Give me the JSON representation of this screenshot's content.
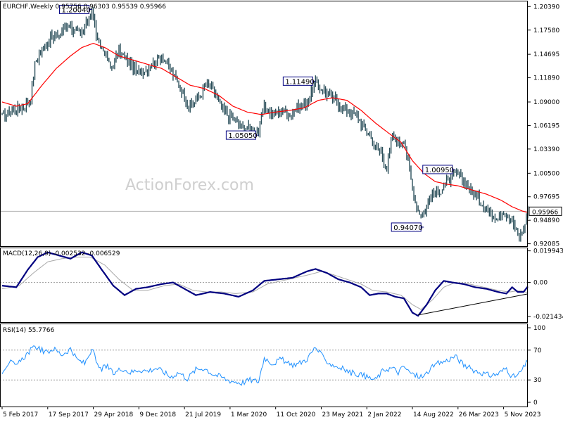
{
  "chart_data": {
    "type": "candlestick",
    "colors": {
      "price": "#2b4f5a",
      "ma": "#ff0000",
      "macd": "#000080",
      "signal": "#a9a9a9",
      "rsi": "#1e90ff",
      "dotted": "#999999",
      "trendline": "#000000"
    },
    "price_panel": {
      "title": "EURCHF,Weekly  0.95756 0.96303 0.95539 0.95966",
      "ylim": [
        0.918,
        1.21
      ],
      "y_ticks": [
        "1.20390",
        "1.17580",
        "1.14695",
        "1.11890",
        "1.09000",
        "1.06195",
        "1.03390",
        "1.00500",
        "0.97695",
        "0.94890",
        "0.92085"
      ],
      "current_price": "0.95966",
      "current_value": 0.95966,
      "watermark": "ActionForex.com",
      "annotations": [
        {
          "label": "1.20040",
          "value": 1.2004,
          "index": 63
        },
        {
          "label": "1.05050",
          "value": 1.0505,
          "index": 180
        },
        {
          "label": "1.11490",
          "value": 1.1149,
          "index": 220
        },
        {
          "label": "1.00950",
          "value": 1.0095,
          "index": 318
        },
        {
          "label": "0.94070",
          "value": 0.9407,
          "index": 296
        }
      ],
      "anchors": [
        [
          0,
          1.073
        ],
        [
          8,
          1.08
        ],
        [
          15,
          1.083
        ],
        [
          20,
          1.095
        ],
        [
          23,
          1.135
        ],
        [
          27,
          1.15
        ],
        [
          33,
          1.165
        ],
        [
          40,
          1.17
        ],
        [
          47,
          1.185
        ],
        [
          50,
          1.175
        ],
        [
          56,
          1.17
        ],
        [
          63,
          1.2
        ],
        [
          67,
          1.16
        ],
        [
          72,
          1.15
        ],
        [
          76,
          1.13
        ],
        [
          82,
          1.15
        ],
        [
          88,
          1.14
        ],
        [
          95,
          1.125
        ],
        [
          102,
          1.13
        ],
        [
          108,
          1.14
        ],
        [
          112,
          1.145
        ],
        [
          118,
          1.13
        ],
        [
          122,
          1.115
        ],
        [
          126,
          1.105
        ],
        [
          131,
          1.085
        ],
        [
          138,
          1.095
        ],
        [
          143,
          1.11
        ],
        [
          148,
          1.105
        ],
        [
          153,
          1.085
        ],
        [
          158,
          1.075
        ],
        [
          163,
          1.07
        ],
        [
          168,
          1.06
        ],
        [
          174,
          1.058
        ],
        [
          180,
          1.055
        ],
        [
          184,
          1.085
        ],
        [
          190,
          1.075
        ],
        [
          196,
          1.08
        ],
        [
          202,
          1.075
        ],
        [
          208,
          1.085
        ],
        [
          214,
          1.09
        ],
        [
          220,
          1.113
        ],
        [
          228,
          1.1
        ],
        [
          235,
          1.09
        ],
        [
          242,
          1.08
        ],
        [
          248,
          1.075
        ],
        [
          254,
          1.06
        ],
        [
          258,
          1.05
        ],
        [
          262,
          1.035
        ],
        [
          266,
          1.03
        ],
        [
          270,
          1.01
        ],
        [
          274,
          1.05
        ],
        [
          278,
          1.04
        ],
        [
          282,
          1.045
        ],
        [
          285,
          1.02
        ],
        [
          288,
          0.985
        ],
        [
          291,
          0.965
        ],
        [
          294,
          0.955
        ],
        [
          297,
          0.962
        ],
        [
          300,
          0.975
        ],
        [
          304,
          0.98
        ],
        [
          308,
          0.985
        ],
        [
          312,
          0.995
        ],
        [
          316,
          1.0
        ],
        [
          319,
          1.005
        ],
        [
          324,
          0.995
        ],
        [
          329,
          0.985
        ],
        [
          334,
          0.975
        ],
        [
          339,
          0.965
        ],
        [
          344,
          0.955
        ],
        [
          348,
          0.955
        ],
        [
          352,
          0.96
        ],
        [
          356,
          0.95
        ],
        [
          360,
          0.94
        ],
        [
          363,
          0.93
        ],
        [
          366,
          0.938
        ],
        [
          369,
          0.96
        ]
      ],
      "ma_anchors": [
        [
          0,
          1.09
        ],
        [
          10,
          1.085
        ],
        [
          18,
          1.088
        ],
        [
          28,
          1.11
        ],
        [
          38,
          1.13
        ],
        [
          48,
          1.145
        ],
        [
          56,
          1.155
        ],
        [
          64,
          1.16
        ],
        [
          72,
          1.155
        ],
        [
          82,
          1.145
        ],
        [
          92,
          1.14
        ],
        [
          102,
          1.135
        ],
        [
          112,
          1.13
        ],
        [
          122,
          1.12
        ],
        [
          132,
          1.11
        ],
        [
          142,
          1.106
        ],
        [
          152,
          1.098
        ],
        [
          162,
          1.085
        ],
        [
          172,
          1.078
        ],
        [
          182,
          1.075
        ],
        [
          192,
          1.078
        ],
        [
          202,
          1.08
        ],
        [
          212,
          1.083
        ],
        [
          222,
          1.092
        ],
        [
          232,
          1.095
        ],
        [
          242,
          1.092
        ],
        [
          252,
          1.08
        ],
        [
          262,
          1.065
        ],
        [
          272,
          1.052
        ],
        [
          280,
          1.042
        ],
        [
          288,
          1.02
        ],
        [
          296,
          1.005
        ],
        [
          304,
          0.995
        ],
        [
          312,
          0.992
        ],
        [
          320,
          0.99
        ],
        [
          330,
          0.985
        ],
        [
          340,
          0.98
        ],
        [
          350,
          0.973
        ],
        [
          358,
          0.965
        ],
        [
          365,
          0.96
        ],
        [
          369,
          0.958
        ]
      ]
    },
    "macd_panel": {
      "title": "MACD(12,26,9) -0.002532 -0.006529",
      "ylim": [
        -0.025,
        0.022
      ],
      "y_ticks": [
        {
          "label": "0.019943",
          "value": 0.019943
        },
        {
          "label": "0.00",
          "value": 0.0
        },
        {
          "label": "-0.021434",
          "value": -0.021434
        }
      ],
      "anchors": [
        [
          0,
          -0.002
        ],
        [
          10,
          -0.003
        ],
        [
          18,
          0.008
        ],
        [
          25,
          0.016
        ],
        [
          32,
          0.019
        ],
        [
          40,
          0.017
        ],
        [
          48,
          0.015
        ],
        [
          56,
          0.019
        ],
        [
          63,
          0.017
        ],
        [
          70,
          0.008
        ],
        [
          78,
          -0.002
        ],
        [
          86,
          -0.008
        ],
        [
          94,
          -0.004
        ],
        [
          102,
          -0.003
        ],
        [
          112,
          -0.001
        ],
        [
          120,
          0.0
        ],
        [
          128,
          -0.004
        ],
        [
          136,
          -0.008
        ],
        [
          146,
          -0.006
        ],
        [
          156,
          -0.007
        ],
        [
          166,
          -0.009
        ],
        [
          176,
          -0.005
        ],
        [
          184,
          0.001
        ],
        [
          194,
          0.002
        ],
        [
          204,
          0.003
        ],
        [
          214,
          0.007
        ],
        [
          220,
          0.0085
        ],
        [
          228,
          0.006
        ],
        [
          236,
          0.002
        ],
        [
          244,
          0.0
        ],
        [
          252,
          -0.003
        ],
        [
          258,
          -0.008
        ],
        [
          264,
          -0.007
        ],
        [
          270,
          -0.007
        ],
        [
          276,
          -0.009
        ],
        [
          282,
          -0.01
        ],
        [
          288,
          -0.019
        ],
        [
          292,
          -0.021
        ],
        [
          298,
          -0.014
        ],
        [
          304,
          -0.005
        ],
        [
          310,
          0.001
        ],
        [
          316,
          0.0
        ],
        [
          324,
          -0.001
        ],
        [
          332,
          -0.003
        ],
        [
          340,
          -0.004
        ],
        [
          348,
          -0.006
        ],
        [
          354,
          -0.007
        ],
        [
          358,
          -0.003
        ],
        [
          362,
          -0.006
        ],
        [
          366,
          -0.006
        ],
        [
          369,
          -0.0025
        ]
      ],
      "signal_anchors": [
        [
          0,
          -0.004
        ],
        [
          12,
          -0.002
        ],
        [
          22,
          0.006
        ],
        [
          32,
          0.013
        ],
        [
          42,
          0.015
        ],
        [
          52,
          0.016
        ],
        [
          62,
          0.016
        ],
        [
          72,
          0.011
        ],
        [
          82,
          0.002
        ],
        [
          92,
          -0.005
        ],
        [
          102,
          -0.005
        ],
        [
          114,
          -0.002
        ],
        [
          124,
          -0.001
        ],
        [
          134,
          -0.005
        ],
        [
          144,
          -0.006
        ],
        [
          154,
          -0.006
        ],
        [
          164,
          -0.007
        ],
        [
          176,
          -0.006
        ],
        [
          186,
          -0.001
        ],
        [
          196,
          0.001
        ],
        [
          206,
          0.003
        ],
        [
          216,
          0.005
        ],
        [
          224,
          0.007
        ],
        [
          232,
          0.005
        ],
        [
          242,
          0.002
        ],
        [
          252,
          -0.001
        ],
        [
          260,
          -0.005
        ],
        [
          270,
          -0.006
        ],
        [
          280,
          -0.008
        ],
        [
          288,
          -0.014
        ],
        [
          294,
          -0.017
        ],
        [
          302,
          -0.011
        ],
        [
          310,
          -0.003
        ],
        [
          318,
          0.0
        ],
        [
          328,
          -0.001
        ],
        [
          338,
          -0.003
        ],
        [
          348,
          -0.005
        ],
        [
          356,
          -0.006
        ],
        [
          364,
          -0.005
        ],
        [
          369,
          -0.0065
        ]
      ],
      "trendline": [
        [
          292,
          -0.0205
        ],
        [
          369,
          -0.0072
        ]
      ]
    },
    "rsi_panel": {
      "title": "RSI(14) 55.7766",
      "ylim": [
        0,
        100
      ],
      "y_ticks": [
        {
          "label": "100",
          "value": 100
        },
        {
          "label": "70",
          "value": 70
        },
        {
          "label": "30",
          "value": 30
        },
        {
          "label": "0",
          "value": 0
        }
      ],
      "anchors": [
        [
          0,
          42
        ],
        [
          5,
          55
        ],
        [
          10,
          48
        ],
        [
          15,
          60
        ],
        [
          20,
          70
        ],
        [
          25,
          75
        ],
        [
          30,
          66
        ],
        [
          36,
          72
        ],
        [
          42,
          64
        ],
        [
          48,
          72
        ],
        [
          52,
          58
        ],
        [
          58,
          52
        ],
        [
          63,
          72
        ],
        [
          68,
          44
        ],
        [
          74,
          48
        ],
        [
          78,
          38
        ],
        [
          84,
          46
        ],
        [
          90,
          40
        ],
        [
          96,
          44
        ],
        [
          102,
          42
        ],
        [
          108,
          46
        ],
        [
          114,
          40
        ],
        [
          118,
          34
        ],
        [
          124,
          40
        ],
        [
          130,
          32
        ],
        [
          136,
          44
        ],
        [
          142,
          46
        ],
        [
          148,
          38
        ],
        [
          154,
          34
        ],
        [
          158,
          30
        ],
        [
          163,
          28
        ],
        [
          168,
          26
        ],
        [
          174,
          30
        ],
        [
          180,
          28
        ],
        [
          184,
          60
        ],
        [
          190,
          52
        ],
        [
          196,
          58
        ],
        [
          202,
          50
        ],
        [
          208,
          52
        ],
        [
          214,
          58
        ],
        [
          220,
          74
        ],
        [
          226,
          58
        ],
        [
          232,
          50
        ],
        [
          238,
          46
        ],
        [
          244,
          40
        ],
        [
          250,
          38
        ],
        [
          256,
          34
        ],
        [
          262,
          30
        ],
        [
          268,
          44
        ],
        [
          274,
          46
        ],
        [
          278,
          40
        ],
        [
          282,
          48
        ],
        [
          286,
          40
        ],
        [
          290,
          36
        ],
        [
          296,
          34
        ],
        [
          300,
          44
        ],
        [
          306,
          52
        ],
        [
          312,
          56
        ],
        [
          318,
          62
        ],
        [
          324,
          50
        ],
        [
          330,
          44
        ],
        [
          336,
          40
        ],
        [
          342,
          36
        ],
        [
          348,
          38
        ],
        [
          354,
          46
        ],
        [
          358,
          34
        ],
        [
          362,
          36
        ],
        [
          366,
          46
        ],
        [
          369,
          56
        ]
      ]
    },
    "x_ticks": [
      {
        "label": "5 Feb 2017",
        "index": 0
      },
      {
        "label": "17 Sep 2017",
        "index": 32
      },
      {
        "label": "29 Apr 2018",
        "index": 64
      },
      {
        "label": "9 Dec 2018",
        "index": 96
      },
      {
        "label": "21 Jul 2019",
        "index": 128
      },
      {
        "label": "1 Mar 2020",
        "index": 160
      },
      {
        "label": "11 Oct 2020",
        "index": 192
      },
      {
        "label": "23 May 2021",
        "index": 224
      },
      {
        "label": "2 Jan 2022",
        "index": 256
      },
      {
        "label": "14 Aug 2022",
        "index": 288
      },
      {
        "label": "26 Mar 2023",
        "index": 320
      },
      {
        "label": "5 Nov 2023",
        "index": 352
      }
    ]
  }
}
